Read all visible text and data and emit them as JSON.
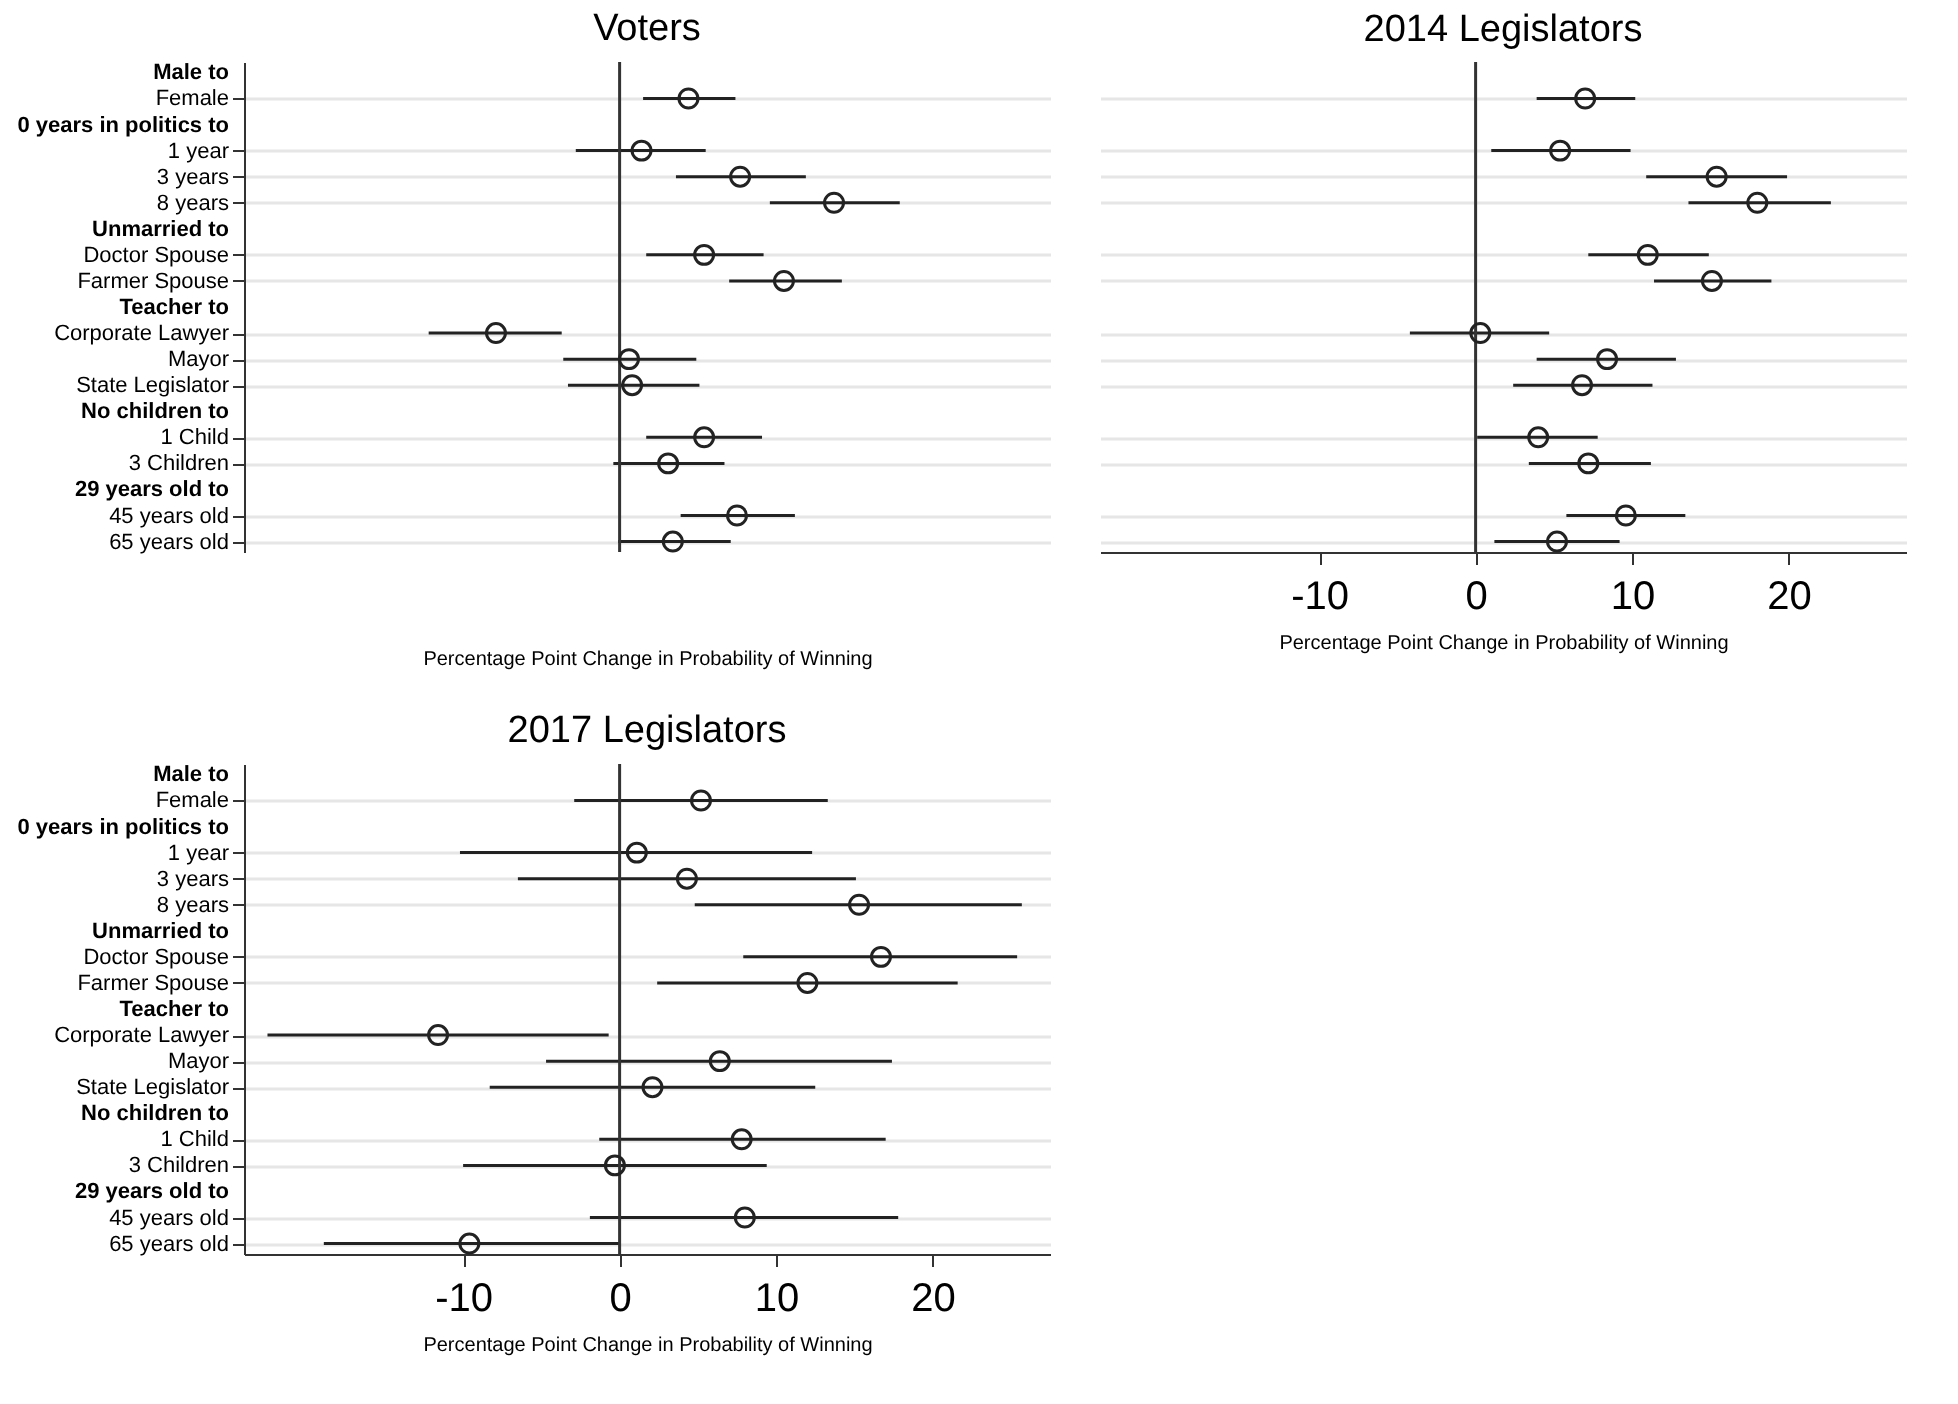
{
  "chart_data": [
    {
      "type": "scatter",
      "title": "Voters",
      "xlabel": "Percentage Point Change in Probability of Winning",
      "orientation": "horizontal",
      "tick_labels": "y",
      "grid": "y",
      "marker": "circle",
      "color": "#222222",
      "categories": [
        "Male to",
        "Female",
        "0 years in politics to",
        "1 year",
        "3 years",
        "8 years",
        "Unmarried to",
        "Doctor Spouse",
        "Farmer Spouse",
        "Teacher to",
        "Corporate Lawyer",
        "Mayor",
        "State Legislator",
        "No children to",
        "1 Child",
        "3 Children",
        "29 years old to",
        "45 years old",
        "65 years old"
      ],
      "values": [
        null,
        4.4,
        null,
        1.4,
        7.7,
        13.7,
        null,
        5.4,
        10.5,
        null,
        -7.9,
        0.6,
        0.8,
        null,
        5.4,
        3.1,
        null,
        7.5,
        3.4
      ],
      "errors": [
        null,
        [
          1.5,
          7.4
        ],
        null,
        [
          -2.8,
          5.5
        ],
        [
          3.6,
          11.9
        ],
        [
          9.6,
          17.9
        ],
        null,
        [
          1.7,
          9.2
        ],
        [
          7.0,
          14.2
        ],
        null,
        [
          -12.2,
          -3.7
        ],
        [
          -3.6,
          4.9
        ],
        [
          -3.3,
          5.1
        ],
        null,
        [
          1.7,
          9.1
        ],
        [
          -0.4,
          6.7
        ],
        null,
        [
          3.9,
          11.2
        ],
        [
          -0.1,
          7.1
        ]
      ],
      "xlim": [
        -24,
        27.5
      ],
      "xticks": [
        -10,
        0,
        10,
        20
      ],
      "ref_lines": [
        {
          "axis": "x",
          "value": 0
        }
      ]
    },
    {
      "type": "scatter",
      "title": "2014 Legislators",
      "xlabel": "Percentage Point Change in Probability of Winning",
      "orientation": "horizontal",
      "tick_labels": "x",
      "grid": "y",
      "marker": "circle",
      "color": "#222222",
      "categories": [
        null,
        null,
        null,
        null,
        null,
        null,
        null,
        null,
        null,
        null,
        null,
        null,
        null,
        null,
        null,
        null,
        null,
        null,
        null
      ],
      "values": [
        null,
        7.0,
        null,
        5.4,
        15.4,
        18.0,
        null,
        11.0,
        15.1,
        null,
        0.3,
        8.4,
        6.8,
        null,
        4.0,
        7.2,
        null,
        9.6,
        5.2
      ],
      "errors": [
        null,
        [
          3.9,
          10.2
        ],
        null,
        [
          1.0,
          9.9
        ],
        [
          10.9,
          19.9
        ],
        [
          13.6,
          22.7
        ],
        null,
        [
          7.2,
          14.9
        ],
        [
          11.4,
          18.9
        ],
        null,
        [
          -4.2,
          4.7
        ],
        [
          3.9,
          12.8
        ],
        [
          2.4,
          11.3
        ],
        null,
        [
          0.1,
          7.8
        ],
        [
          3.4,
          11.2
        ],
        null,
        [
          5.8,
          13.4
        ],
        [
          1.2,
          9.2
        ]
      ],
      "xlim": [
        -24,
        27.5
      ],
      "xticks": [
        -10,
        0,
        10,
        20
      ],
      "ref_lines": [
        {
          "axis": "x",
          "value": 0
        }
      ]
    },
    {
      "type": "scatter",
      "title": "2017 Legislators",
      "xlabel": "Percentage Point Change in Probability of Winning",
      "orientation": "horizontal",
      "grid": "y",
      "marker": "circle",
      "color": "#222222",
      "categories": [
        "Male to",
        "Female",
        "0 years in politics to",
        "1 year",
        "3 years",
        "8 years",
        "Unmarried to",
        "Doctor Spouse",
        "Farmer Spouse",
        "Teacher to",
        "Corporate Lawyer",
        "Mayor",
        "State Legislator",
        "No children to",
        "1 Child",
        "3 Children",
        "29 years old to",
        "45 years old",
        "65 years old"
      ],
      "values": [
        null,
        5.2,
        null,
        1.1,
        4.3,
        15.3,
        null,
        16.7,
        12.0,
        null,
        -11.6,
        6.4,
        2.1,
        null,
        7.8,
        -0.3,
        null,
        8.0,
        -9.6
      ],
      "errors": [
        null,
        [
          -2.9,
          13.3
        ],
        null,
        [
          -10.2,
          12.3
        ],
        [
          -6.5,
          15.1
        ],
        [
          4.8,
          25.7
        ],
        null,
        [
          7.9,
          25.4
        ],
        [
          2.4,
          21.6
        ],
        null,
        [
          -22.5,
          -0.7
        ],
        [
          -4.7,
          17.4
        ],
        [
          -8.3,
          12.5
        ],
        null,
        [
          -1.3,
          17.0
        ],
        [
          -10.0,
          9.4
        ],
        null,
        [
          -1.9,
          17.8
        ],
        [
          -18.9,
          0.0
        ]
      ],
      "xlim": [
        -24,
        27.5
      ],
      "xticks": [
        -10,
        0,
        10,
        20
      ],
      "ref_lines": [
        {
          "axis": "x",
          "value": 0
        }
      ]
    }
  ]
}
